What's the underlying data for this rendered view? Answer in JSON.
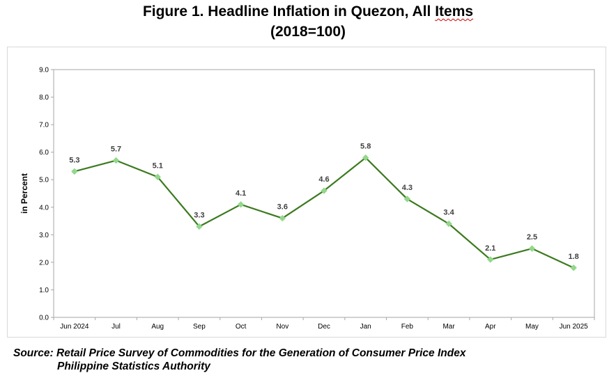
{
  "title": {
    "line1_prefix": "Figure 1. Headline Inflation in Quezon, All ",
    "line1_flagged": "Items",
    "line2": "(2018=100)"
  },
  "source": {
    "line1": "Source: Retail Price Survey of Commodities for the Generation of Consumer Price Index",
    "line2": "Philippine Statistics Authority"
  },
  "chart_data": {
    "type": "line",
    "title": "Figure 1. Headline Inflation in Quezon, All Items (2018=100)",
    "xlabel": "",
    "ylabel": "in Percent",
    "ylim": [
      0,
      9
    ],
    "yticks": [
      "0.0",
      "1.0",
      "2.0",
      "3.0",
      "4.0",
      "5.0",
      "6.0",
      "7.0",
      "8.0",
      "9.0"
    ],
    "categories": [
      "Jun 2024",
      "Jul",
      "Aug",
      "Sep",
      "Oct",
      "Nov",
      "Dec",
      "Jan",
      "Feb",
      "Mar",
      "Apr",
      "May",
      "Jun 2025"
    ],
    "series": [
      {
        "values": [
          5.3,
          5.7,
          5.1,
          3.3,
          4.1,
          3.6,
          4.6,
          5.8,
          4.3,
          3.4,
          2.1,
          2.5,
          1.8
        ],
        "labels": [
          "5.3",
          "5.7",
          "5.1",
          "3.3",
          "4.1",
          "3.6",
          "4.6",
          "5.8",
          "4.3",
          "3.4",
          "2.1",
          "2.5",
          "1.8"
        ]
      }
    ],
    "grid": false,
    "legend": "none",
    "colors": {
      "line": "#3b7a1e",
      "marker": "#92d88a",
      "axis": "#a6a6a6"
    }
  }
}
